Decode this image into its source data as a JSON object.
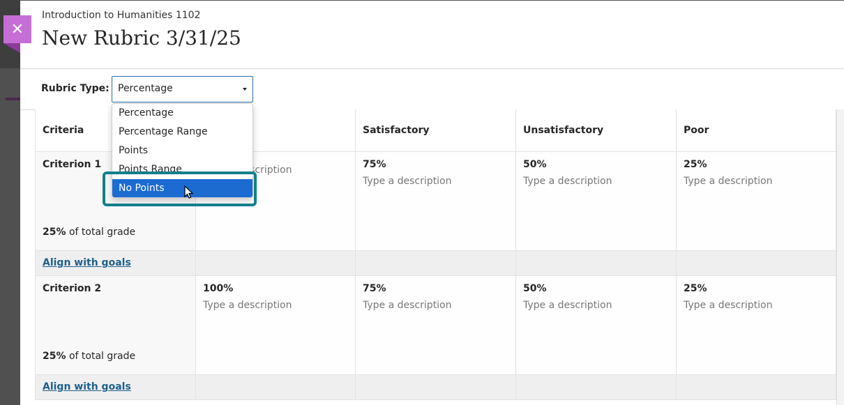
{
  "header": {
    "course": "Introduction to Humanities 1102",
    "title": "New Rubric 3/31/25",
    "close_icon": "close-icon"
  },
  "rubric_type": {
    "label": "Rubric Type:",
    "value": "Percentage",
    "options": [
      "Percentage",
      "Percentage Range",
      "Points",
      "Points Range",
      "No Points"
    ],
    "highlighted": "No Points"
  },
  "table": {
    "headers": [
      "Criteria",
      "",
      "Satisfactory",
      "Unsatisfactory",
      "Poor"
    ],
    "rows": [
      {
        "name": "Criterion 1",
        "weight": "25%",
        "weight_suffix": "of total grade",
        "cells": [
          {
            "pct": "",
            "desc": "Type a description"
          },
          {
            "pct": "75%",
            "desc": "Type a description"
          },
          {
            "pct": "50%",
            "desc": "Type a description"
          },
          {
            "pct": "25%",
            "desc": "Type a description"
          }
        ],
        "align": "Align with goals"
      },
      {
        "name": "Criterion 2",
        "weight": "25%",
        "weight_suffix": "of total grade",
        "cells": [
          {
            "pct": "100%",
            "desc": "Type a description"
          },
          {
            "pct": "75%",
            "desc": "Type a description"
          },
          {
            "pct": "50%",
            "desc": "Type a description"
          },
          {
            "pct": "25%",
            "desc": "Type a description"
          }
        ],
        "align": "Align with goals"
      }
    ]
  },
  "colors": {
    "accent": "#c56fd6",
    "selected": "#1b6bd1",
    "highlight": "#137f8c",
    "link": "#1f5f8b"
  }
}
